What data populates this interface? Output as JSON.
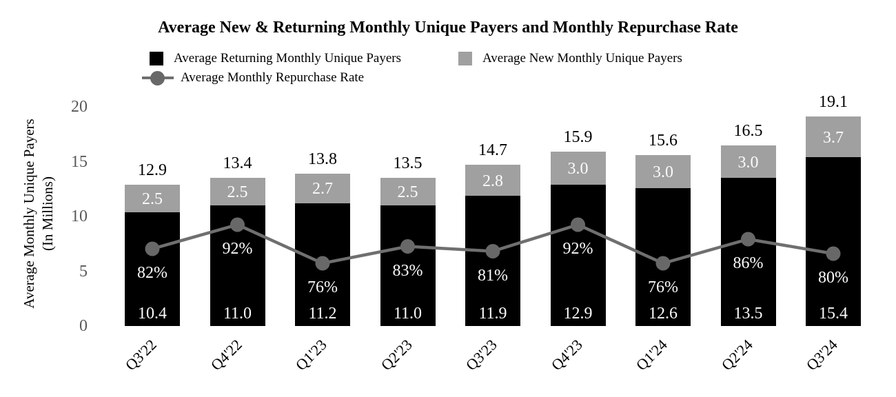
{
  "title": "Average New & Returning Monthly Unique Payers and Monthly Repurchase Rate",
  "legend": {
    "items": [
      {
        "label": "Average Returning Monthly Unique Payers",
        "swatch": "black-square"
      },
      {
        "label": "Average New Monthly Unique Payers",
        "swatch": "gray-square"
      },
      {
        "label": "Average Monthly Repurchase Rate",
        "swatch": "gray-line-with-circle-marker"
      }
    ]
  },
  "y_axis": {
    "title_line1": "Average Monthly Unique Payers",
    "title_line2": "(In Millions)",
    "ticks": [
      0,
      5,
      10,
      15,
      20
    ]
  },
  "colors": {
    "returning_bar": "#000000",
    "new_bar": "#a0a0a0",
    "line": "#6f6f6f",
    "marker": "#686868",
    "tick_text": "#595959",
    "in_bar_text": "#fbfbfb",
    "text": "#000000"
  },
  "chart_data": {
    "type": "bar",
    "subtype": "stacked-bars-with-line-overlay",
    "title": "Average New & Returning Monthly Unique Payers and Monthly Repurchase Rate",
    "categories": [
      "Q3'22",
      "Q4'22",
      "Q1'23",
      "Q2'23",
      "Q3'23",
      "Q4'23",
      "Q1'24",
      "Q2'24",
      "Q3'24"
    ],
    "series": [
      {
        "name": "Average Returning Monthly Unique Payers",
        "type": "bar",
        "stacked": true,
        "color": "#000000",
        "values": [
          10.4,
          11.0,
          11.2,
          11.0,
          11.9,
          12.9,
          12.6,
          13.5,
          15.4
        ],
        "labels": [
          "10.4",
          "11.0",
          "11.2",
          "11.0",
          "11.9",
          "12.9",
          "12.6",
          "13.5",
          "15.4"
        ]
      },
      {
        "name": "Average New Monthly Unique Payers",
        "type": "bar",
        "stacked": true,
        "color": "#a0a0a0",
        "values": [
          2.5,
          2.5,
          2.7,
          2.5,
          2.8,
          3.0,
          3.0,
          3.0,
          3.7
        ],
        "labels": [
          "2.5",
          "2.5",
          "2.7",
          "2.5",
          "2.8",
          "3.0",
          "3.0",
          "3.0",
          "3.7"
        ]
      },
      {
        "name": "Average Monthly Repurchase Rate",
        "type": "line",
        "color": "#6f6f6f",
        "values_percent": [
          82,
          92,
          76,
          83,
          81,
          92,
          76,
          86,
          80
        ],
        "labels": [
          "82%",
          "92%",
          "76%",
          "83%",
          "81%",
          "92%",
          "76%",
          "86%",
          "80%"
        ]
      }
    ],
    "stack_totals": {
      "values": [
        12.9,
        13.4,
        13.8,
        13.5,
        14.7,
        15.9,
        15.6,
        16.5,
        19.1
      ],
      "labels": [
        "12.9",
        "13.4",
        "13.8",
        "13.5",
        "14.7",
        "15.9",
        "15.6",
        "16.5",
        "19.1"
      ]
    },
    "ylabel": "Average Monthly Unique Payers (In Millions)",
    "ylim": [
      0,
      20
    ],
    "yticks": [
      0,
      5,
      10,
      15,
      20
    ],
    "grid": false,
    "legend_position": "top"
  }
}
